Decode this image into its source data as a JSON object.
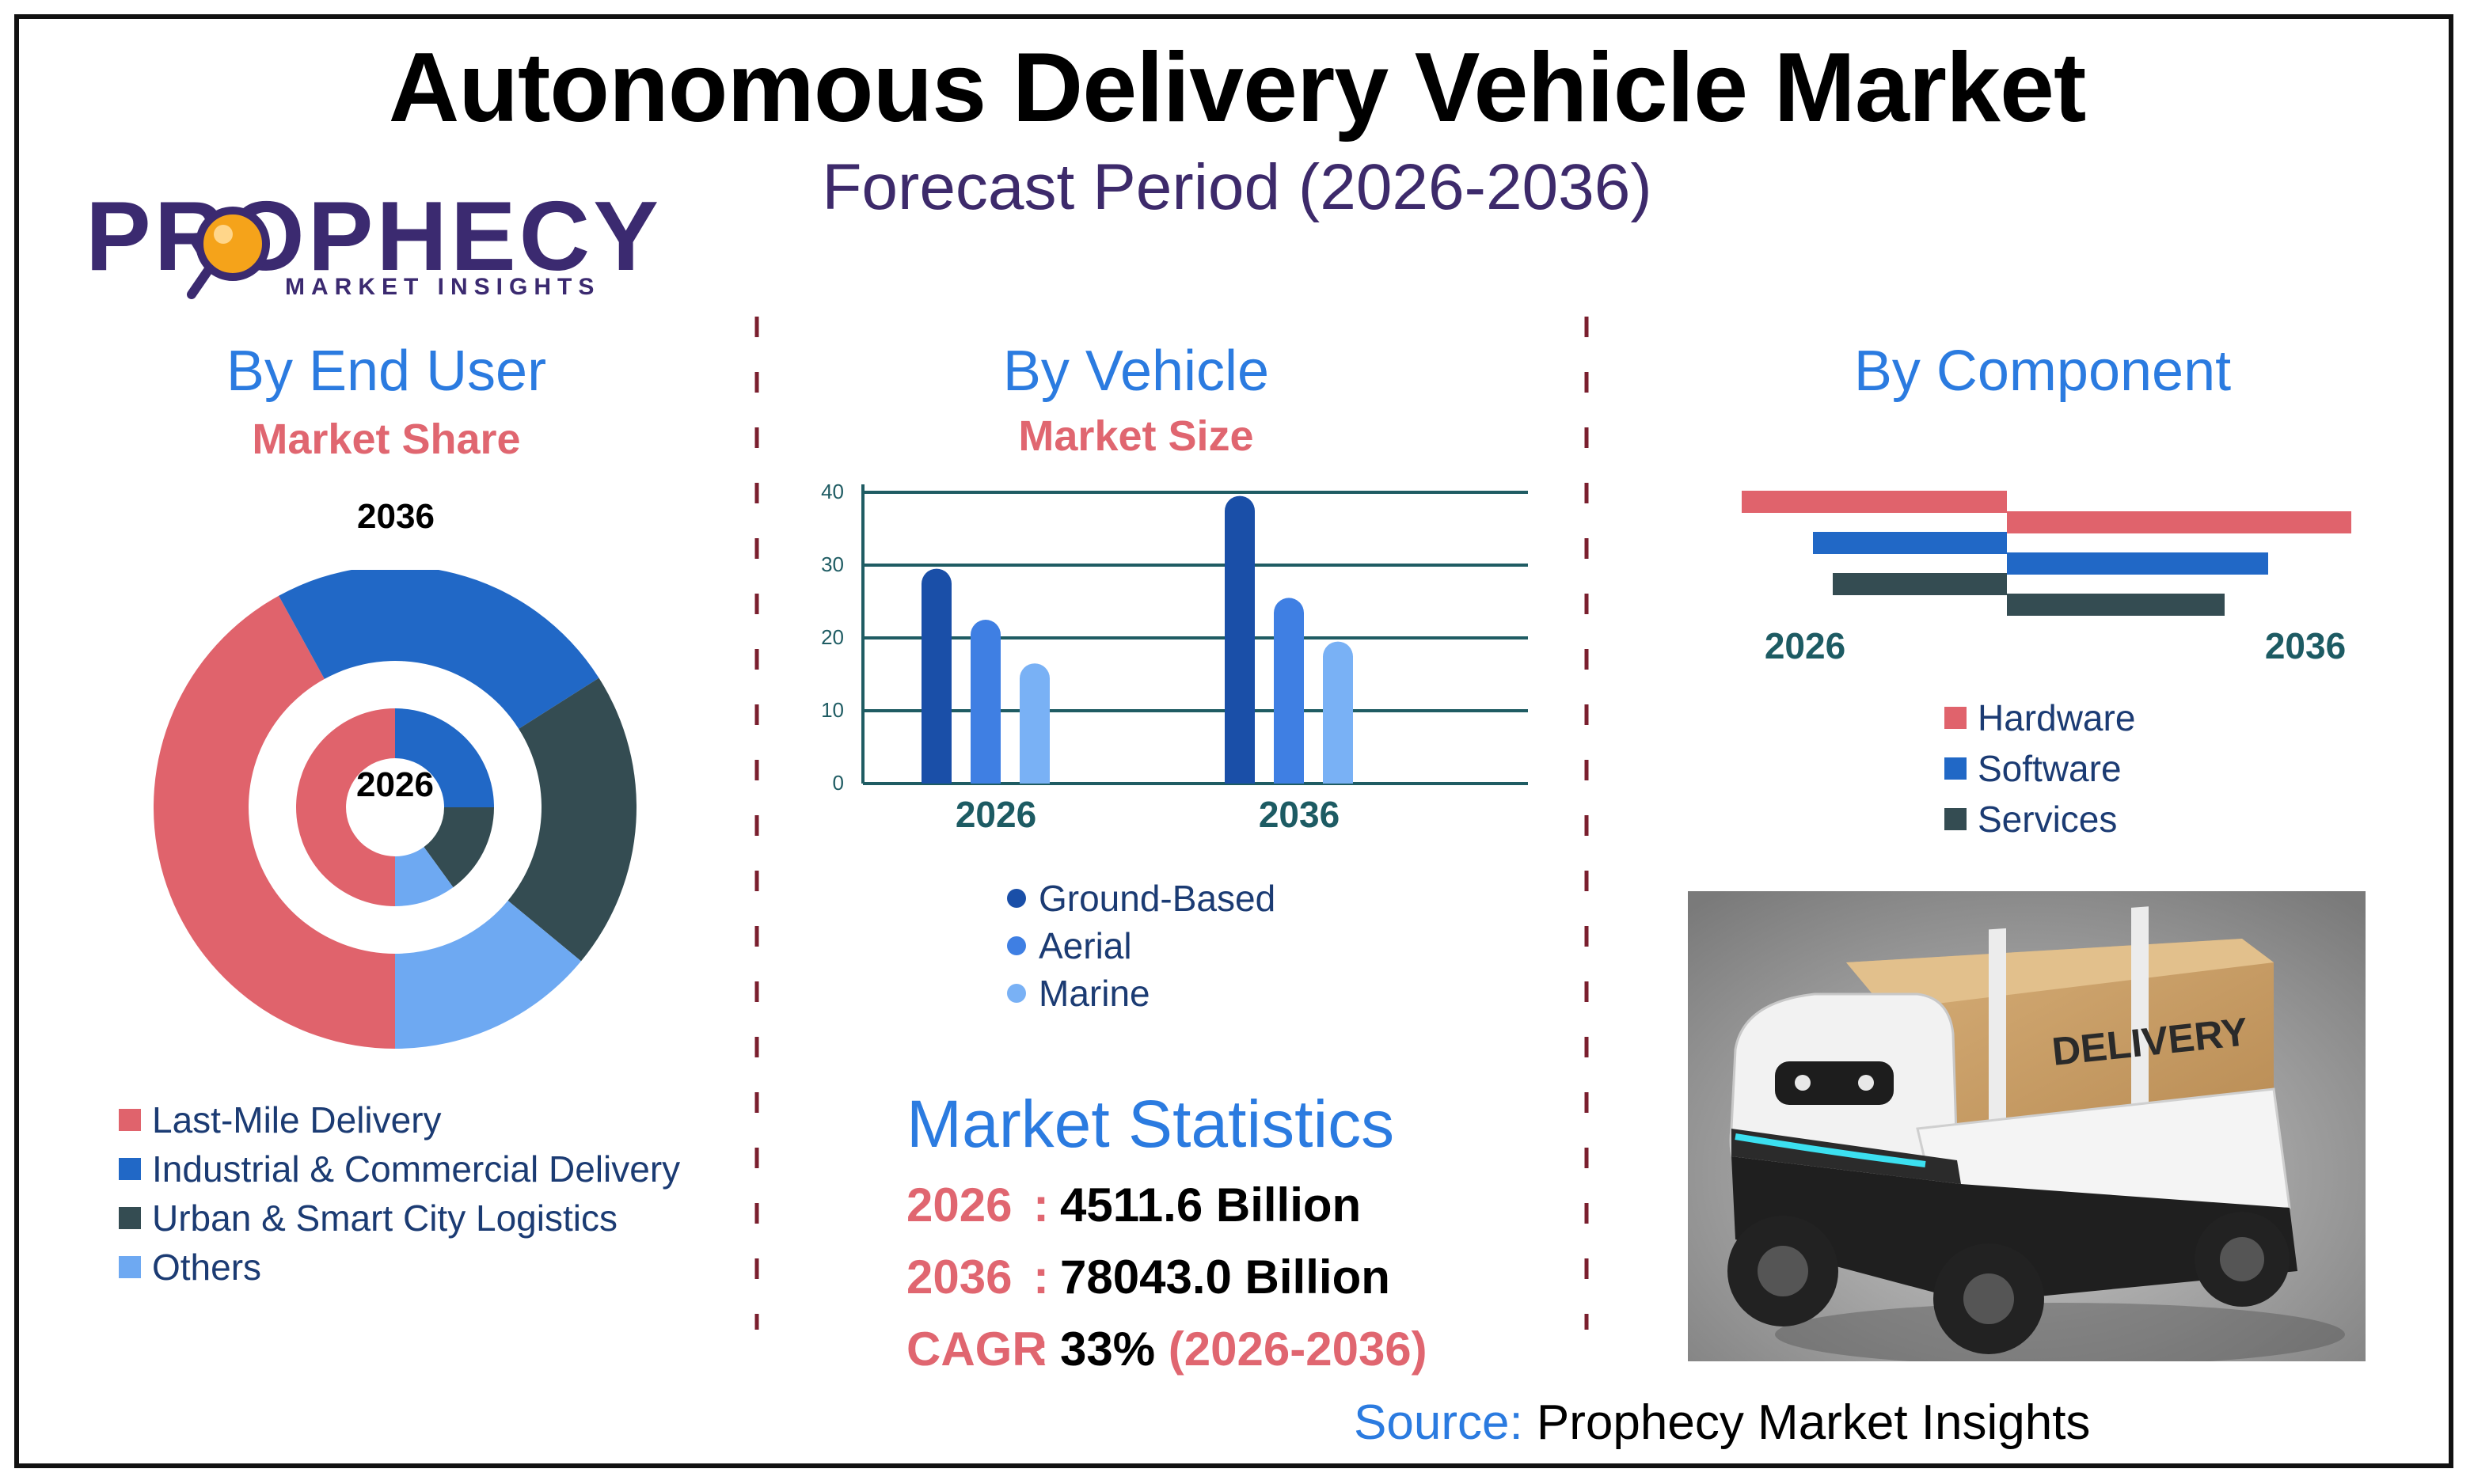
{
  "header": {
    "title": "Autonomous Delivery Vehicle Market",
    "subtitle": "Forecast Period (2026-2036)"
  },
  "logo": {
    "main": "PROPHECY",
    "sub": "MARKET INSIGHTS"
  },
  "sections": {
    "end_user": {
      "title": "By End User",
      "subtitle": "Market Share"
    },
    "vehicle": {
      "title": "By Vehicle",
      "subtitle": "Market Size"
    },
    "component": {
      "title": "By Component"
    }
  },
  "stats": {
    "title": "Market Statistics",
    "rows": [
      {
        "key": "2026",
        "value": "4511.6 Billion",
        "extra": ""
      },
      {
        "key": "2036",
        "value": "78043.0 Billion",
        "extra": ""
      },
      {
        "key": "CAGR",
        "value": "33%",
        "extra": "(2026-2036)"
      }
    ]
  },
  "source": {
    "label": "Source:",
    "text": "Prophecy Market Insights"
  },
  "image": {
    "text": "DELIVERY"
  },
  "chart_data": [
    {
      "type": "pie",
      "variant": "nested-donut",
      "outer_label": "2036",
      "inner_label": "2026",
      "categories": [
        "Last-Mile Delivery",
        "Industrial & Commercial Delivery",
        "Urban & Smart City Logistics",
        "Others"
      ],
      "colors": [
        "#e0636c",
        "#2168c6",
        "#344c52",
        "#6ea9f2"
      ],
      "series": [
        {
          "name": "2036",
          "values": [
            42,
            24,
            20,
            14
          ]
        },
        {
          "name": "2026",
          "values": [
            50,
            25,
            15,
            10
          ]
        }
      ]
    },
    {
      "type": "bar",
      "categories": [
        "2026",
        "2036"
      ],
      "ylim": [
        0,
        40
      ],
      "yticks": [
        0,
        10,
        20,
        30,
        40
      ],
      "legend": [
        "Ground-Based",
        "Aerial",
        "Marine"
      ],
      "colors": [
        "#1a4fa8",
        "#3f7fe3",
        "#79b1f5"
      ],
      "series": [
        {
          "name": "Ground-Based",
          "values": [
            29.5,
            39.5
          ]
        },
        {
          "name": "Aerial",
          "values": [
            22.5,
            25.5
          ]
        },
        {
          "name": "Marine",
          "values": [
            16.5,
            19.5
          ]
        }
      ]
    },
    {
      "type": "bar",
      "orientation": "horizontal-diverging",
      "categories": [
        "Hardware",
        "Software",
        "Services"
      ],
      "colors": [
        "#e0636c",
        "#2168c6",
        "#344c52"
      ],
      "left_label": "2026",
      "right_label": "2036",
      "series": [
        {
          "name": "2026",
          "values": [
            335,
            245,
            220
          ]
        },
        {
          "name": "2036",
          "values": [
            435,
            330,
            275
          ]
        }
      ]
    }
  ]
}
